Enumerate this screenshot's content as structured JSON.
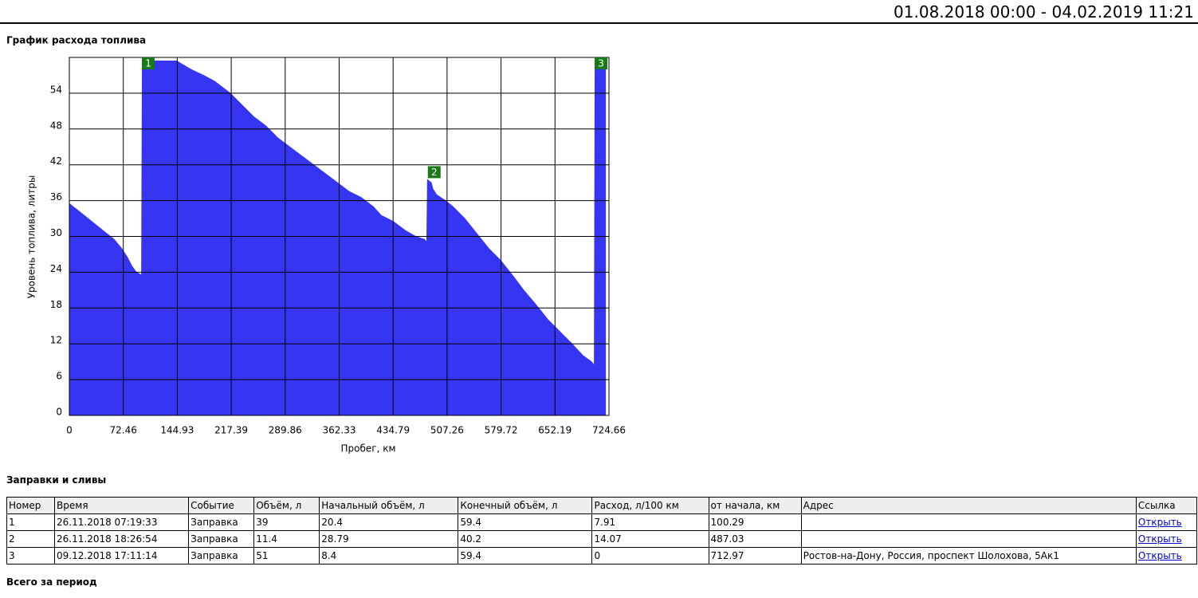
{
  "header": {
    "period": "01.08.2018 00:00 - 04.02.2019 11:21"
  },
  "chart_data": {
    "type": "area",
    "title": "График расхода топлива",
    "x_label": "Пробег, км",
    "y_label": "Уровень топлива, литры",
    "x": [
      0,
      5,
      10,
      20,
      30,
      40,
      50,
      60,
      70,
      78,
      84,
      90,
      97,
      98,
      110,
      125,
      144,
      163,
      180,
      195,
      216,
      232,
      248,
      264,
      280,
      296,
      312,
      328,
      344,
      360,
      376,
      392,
      408,
      419,
      435,
      451,
      465,
      477,
      480,
      481,
      486,
      488,
      493,
      505,
      515,
      531,
      547,
      563,
      579,
      595,
      610,
      627,
      643,
      659,
      675,
      690,
      701,
      705,
      706,
      715,
      720
    ],
    "values": [
      35.5,
      35,
      34.5,
      33.5,
      32.5,
      31.5,
      30.5,
      29.5,
      28,
      26.5,
      25,
      24,
      23.5,
      59.4,
      59.4,
      59.4,
      59.4,
      58,
      57,
      56,
      54,
      52,
      50,
      48.5,
      46.5,
      45,
      43.5,
      42,
      40.5,
      39,
      37.5,
      36.5,
      35,
      33.5,
      32.5,
      31,
      30,
      29.5,
      29,
      39.5,
      39,
      38,
      37,
      36,
      35,
      33,
      30.5,
      28,
      26,
      23.5,
      21,
      18.5,
      16,
      14,
      12,
      10,
      9,
      8.4,
      59.4,
      59.4,
      59.4
    ],
    "color": "#3636f2",
    "xlim": [
      0,
      724.66
    ],
    "ylim": [
      0,
      60
    ],
    "xticks": [
      0,
      72.46,
      144.93,
      217.39,
      289.86,
      362.33,
      434.79,
      507.26,
      579.72,
      652.19,
      724.66
    ],
    "yticks": [
      0,
      6,
      12,
      18,
      24,
      30,
      36,
      42,
      48,
      54
    ],
    "grid": true,
    "annotations": [
      {
        "text": "1",
        "x": 106,
        "y": 59
      },
      {
        "text": "2",
        "x": 490,
        "y": 40.7
      },
      {
        "text": "3",
        "x": 714,
        "y": 59
      }
    ],
    "annotation_color": "#177a17"
  },
  "events": {
    "title": "Заправки и сливы",
    "columns": [
      "Номер",
      "Время",
      "Событие",
      "Объём, л",
      "Начальный объём, л",
      "Конечный объём, л",
      "Расход, л/100 км",
      "от начала, км",
      "Адрес",
      "Ссылка"
    ],
    "rows": [
      [
        "1",
        "26.11.2018 07:19:33",
        "Заправка",
        "39",
        "20.4",
        "59.4",
        "7.91",
        "100.29",
        "",
        "Открыть"
      ],
      [
        "2",
        "26.11.2018 18:26:54",
        "Заправка",
        "11.4",
        "28.79",
        "40.2",
        "14.07",
        "487.03",
        "",
        "Открыть"
      ],
      [
        "3",
        "09.12.2018 17:11:14",
        "Заправка",
        "51",
        "8.4",
        "59.4",
        "0",
        "712.97",
        "Ростов-на-Дону, Россия, проспект Шолохова, 5Ак1",
        "Открыть"
      ]
    ]
  },
  "summary": {
    "title": "Всего за период"
  }
}
